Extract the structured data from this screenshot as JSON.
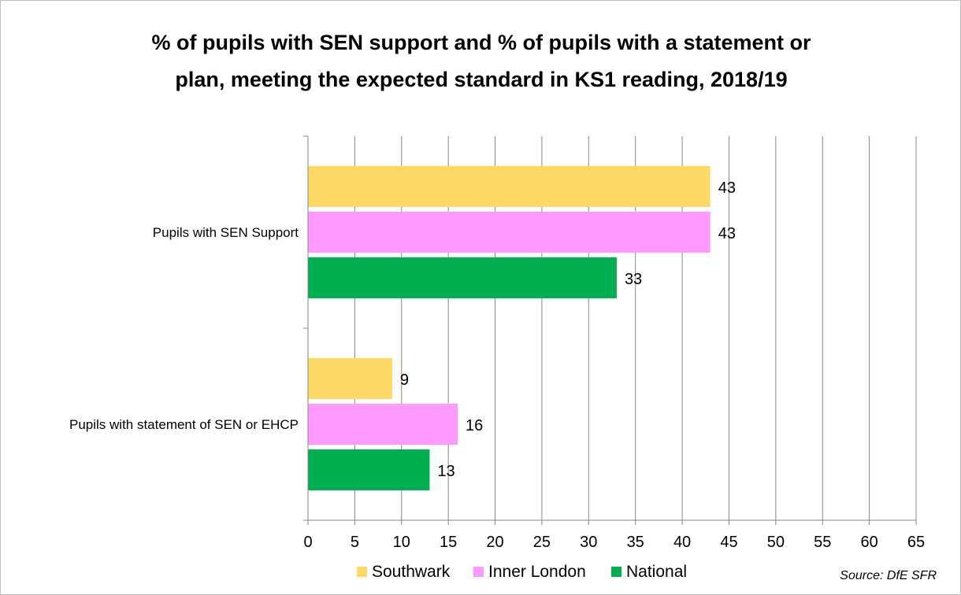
{
  "chart_data": {
    "type": "bar",
    "orientation": "horizontal",
    "title_lines": [
      "% of pupils with SEN support and % of pupils with a statement or",
      "plan, meeting the expected standard in KS1 reading, 2018/19"
    ],
    "categories": [
      "Pupils with SEN Support",
      "Pupils with statement of SEN or EHCP"
    ],
    "series": [
      {
        "name": "Southwark",
        "color": "#FFD966",
        "values": [
          43,
          9
        ]
      },
      {
        "name": "Inner London",
        "color": "#FF99FF",
        "values": [
          43,
          16
        ]
      },
      {
        "name": "National",
        "color": "#00B050",
        "values": [
          33,
          13
        ]
      }
    ],
    "xlim": [
      0,
      65
    ],
    "xticks": [
      0,
      5,
      10,
      15,
      20,
      25,
      30,
      35,
      40,
      45,
      50,
      55,
      60,
      65
    ],
    "grid": "vertical",
    "legend_position": "bottom",
    "data_labels": true
  },
  "source_note": "Source: DfE SFR"
}
